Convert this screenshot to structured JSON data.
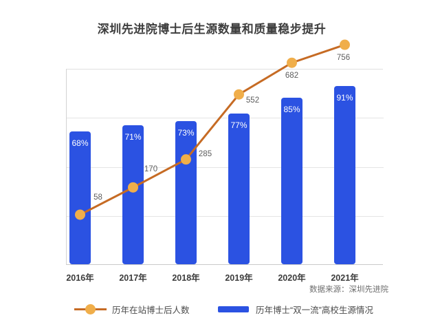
{
  "title": "深圳先进院博士后生源数量和质量稳步提升",
  "source_note": "数据来源：深圳先进院",
  "colors": {
    "bar": "#2b52e2",
    "line": "#c66b24",
    "marker": "#f0ae4a",
    "bar_label_text": "#ffffff",
    "value_label_text": "#5c5c5c",
    "axis_label_text": "#3b3b3b",
    "title_text": "#3d3d3d",
    "grid": "#e5e5e5"
  },
  "legend": {
    "items": [
      {
        "label": "历年在站博士后人数",
        "marker": "line-dot"
      },
      {
        "label": "历年博士“双一流”高校生源情况",
        "marker": "bar-swatch"
      }
    ]
  },
  "chart_data": {
    "type": "bar+line",
    "title": "深圳先进院博士后生源数量和质量稳步提升",
    "categories": [
      "2016年",
      "2017年",
      "2018年",
      "2019年",
      "2020年",
      "2021年"
    ],
    "series": [
      {
        "name": "历年博士“双一流”高校生源情况",
        "type": "bar",
        "values": [
          68,
          71,
          73,
          77,
          85,
          91
        ],
        "labels": [
          "68%",
          "71%",
          "73%",
          "77%",
          "85%",
          "91%"
        ],
        "unit": "%"
      },
      {
        "name": "历年在站博士后人数",
        "type": "line",
        "values": [
          58,
          170,
          285,
          552,
          682,
          756
        ],
        "labels": [
          "58",
          "170",
          "285",
          "552",
          "682",
          "756"
        ]
      }
    ],
    "grid": "horizontal",
    "y_axis_tick_labels": "none",
    "legend_position": "bottom",
    "source": "数据来源：深圳先进院"
  }
}
